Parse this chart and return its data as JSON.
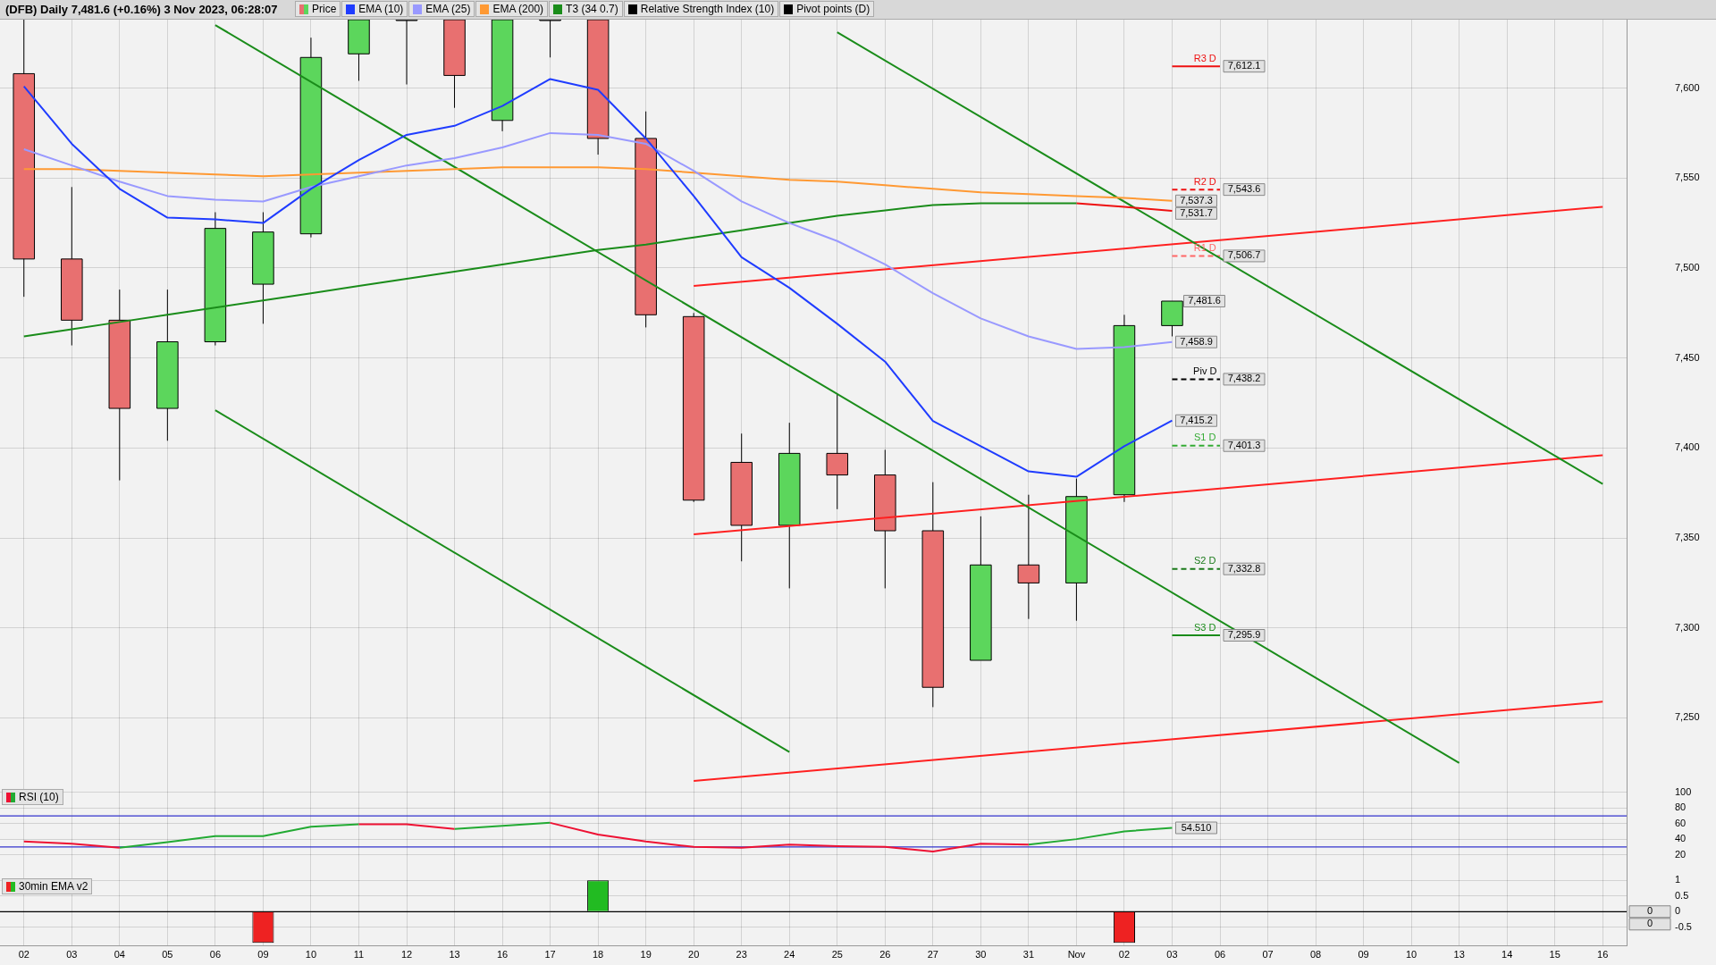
{
  "chart_data": [
    {
      "type": "candlestick",
      "title": "(DFB) Daily 7,481.6 (+0.16%) 3 Nov 2023, 06:28:07",
      "legend": "top left",
      "grid": true,
      "tick_labels": "y",
      "categories": [
        null,
        null,
        null,
        null,
        null,
        null,
        null,
        null,
        null,
        null,
        null,
        null,
        null,
        null,
        null,
        null,
        null,
        null,
        null,
        null,
        null,
        null,
        null,
        null,
        null,
        null,
        null,
        null,
        null,
        null,
        null,
        null,
        null,
        null
      ],
      "ylim": [
        7212,
        7638
      ],
      "yticks": [
        {
          "value": 7250,
          "label": "7,250"
        },
        {
          "value": 7300,
          "label": "7,300"
        },
        {
          "value": 7350,
          "label": "7,350"
        },
        {
          "value": 7400,
          "label": "7,400"
        },
        {
          "value": 7450,
          "label": "7,450"
        },
        {
          "value": 7500,
          "label": "7,500"
        },
        {
          "value": 7550,
          "label": "7,550"
        },
        {
          "value": 7600,
          "label": "7,600"
        }
      ],
      "series": [
        {
          "name": "Price",
          "ohlc": [
            [
              7608,
              7638,
              7484,
              7505
            ],
            [
              7505,
              7545,
              7457,
              7471
            ],
            [
              7471,
              7488,
              7382,
              7422
            ],
            [
              7422,
              7488,
              7404,
              7459
            ],
            [
              7459,
              7531,
              7457,
              7522
            ],
            [
              7491,
              7531,
              7469,
              7520
            ],
            [
              7519,
              7628,
              7517,
              7617
            ],
            [
              7619,
              7638,
              7604,
              7638
            ],
            [
              7638,
              7638,
              7602,
              7638
            ],
            [
              7638,
              7638,
              7589,
              7607
            ],
            [
              7582,
              7638,
              7576,
              7638
            ],
            [
              7638,
              7638,
              7617,
              7638
            ],
            [
              7638,
              7638,
              7563,
              7572
            ],
            [
              7572,
              7587,
              7467,
              7474
            ],
            [
              7473,
              7475,
              7370,
              7371
            ],
            [
              7392,
              7408,
              7337,
              7357
            ],
            [
              7357,
              7414,
              7322,
              7397
            ],
            [
              7397,
              7430,
              7366,
              7385
            ],
            [
              7385,
              7399,
              7322,
              7354
            ],
            [
              7354,
              7381,
              7256,
              7267
            ],
            [
              7282,
              7362,
              7282,
              7335
            ],
            [
              7335,
              7374,
              7305,
              7325
            ],
            [
              7325,
              7383,
              7304,
              7373
            ],
            [
              7374,
              7474,
              7370,
              7468
            ],
            [
              7468,
              7481.6,
              7462,
              7481.6
            ],
            null,
            null,
            null,
            null,
            null,
            null,
            null,
            null,
            null
          ],
          "colors": [
            "#e87070",
            "#e87070",
            "#e87070",
            "#5cd65c",
            "#5cd65c",
            "#5cd65c",
            "#5cd65c",
            "#5cd65c",
            null,
            "#e87070",
            "#5cd65c",
            null,
            "#e87070",
            "#e87070",
            "#e87070",
            "#e87070",
            "#5cd65c",
            "#e87070",
            "#e87070",
            "#e87070",
            "#5cd65c",
            "#e87070",
            "#5cd65c",
            "#5cd65c",
            "#5cd65c",
            null,
            null,
            null,
            null,
            null,
            null,
            null,
            null,
            null
          ],
          "value_labels": [
            null,
            null,
            null,
            null,
            null,
            null,
            null,
            null,
            null,
            null,
            null,
            null,
            null,
            null,
            null,
            null,
            null,
            null,
            null,
            null,
            null,
            null,
            null,
            null,
            "7,481.6",
            null,
            null,
            null,
            null,
            null,
            null,
            null,
            null,
            null
          ]
        },
        {
          "name": "EMA (10)",
          "type": "line",
          "color": "#1f3cff",
          "values": [
            7601,
            7569,
            7544,
            7528,
            7527,
            7525,
            7544,
            7560,
            7574,
            7579,
            7590,
            7605,
            7599,
            7572,
            7540,
            7506,
            7489,
            7469,
            7448,
            7415,
            7401,
            7387,
            7384,
            7401,
            7415.2,
            null,
            null,
            null,
            null,
            null,
            null,
            null,
            null,
            null
          ],
          "value_labels": [
            null,
            null,
            null,
            null,
            null,
            null,
            null,
            null,
            null,
            null,
            null,
            null,
            null,
            null,
            null,
            null,
            null,
            null,
            null,
            null,
            null,
            null,
            null,
            null,
            "7,415.2",
            null,
            null,
            null,
            null,
            null,
            null,
            null,
            null,
            null
          ]
        },
        {
          "name": "EMA (25)",
          "type": "line",
          "color": "#9999ff",
          "values": [
            7566,
            7557,
            7548,
            7540,
            7538,
            7537,
            7545,
            7551,
            7557,
            7561,
            7567,
            7575,
            7574,
            7569,
            7554,
            7537,
            7525,
            7515,
            7502,
            7486,
            7472,
            7462,
            7455,
            7456,
            7458.9,
            null,
            null,
            null,
            null,
            null,
            null,
            null,
            null,
            null
          ],
          "value_labels": [
            null,
            null,
            null,
            null,
            null,
            null,
            null,
            null,
            null,
            null,
            null,
            null,
            null,
            null,
            null,
            null,
            null,
            null,
            null,
            null,
            null,
            null,
            null,
            null,
            "7,458.9",
            null,
            null,
            null,
            null,
            null,
            null,
            null,
            null,
            null
          ]
        },
        {
          "name": "EMA (200)",
          "type": "line",
          "color": "#ff9933",
          "values": [
            7555,
            7555,
            7554,
            7553,
            7552,
            7551,
            7552,
            7553,
            7554,
            7555,
            7556,
            7556,
            7556,
            7555,
            7553,
            7551,
            7549,
            7548,
            7546,
            7544,
            7542,
            7541,
            7540,
            7539,
            7537.3,
            null,
            null,
            null,
            null,
            null,
            null,
            null,
            null,
            null
          ],
          "value_labels": [
            null,
            null,
            null,
            null,
            null,
            null,
            null,
            null,
            null,
            null,
            null,
            null,
            null,
            null,
            null,
            null,
            null,
            null,
            null,
            null,
            null,
            null,
            null,
            null,
            "7,537.3",
            null,
            null,
            null,
            null,
            null,
            null,
            null,
            null,
            null
          ]
        },
        {
          "name": "T3 (34 0.7)",
          "type": "line",
          "color": "#1a8c1a",
          "values": [
            7462,
            7466,
            7470,
            7474,
            7478,
            7482,
            7486,
            7490,
            7494,
            7498,
            7502,
            7506,
            7510,
            7513,
            7517,
            7521,
            7525,
            7529,
            7532,
            7535,
            7536,
            7536,
            7536,
            null,
            null,
            null,
            null,
            null,
            null,
            null,
            null,
            null,
            null,
            null
          ]
        },
        {
          "type": "line",
          "color": "#ee1111",
          "values": [
            null,
            null,
            null,
            null,
            null,
            null,
            null,
            null,
            null,
            null,
            null,
            null,
            null,
            null,
            null,
            null,
            null,
            null,
            null,
            null,
            null,
            null,
            7536,
            7534,
            7531.7,
            null,
            null,
            null,
            null,
            null,
            null,
            null,
            null,
            null
          ],
          "value_labels": [
            null,
            null,
            null,
            null,
            null,
            null,
            null,
            null,
            null,
            null,
            null,
            null,
            null,
            null,
            null,
            null,
            null,
            null,
            null,
            null,
            null,
            null,
            null,
            null,
            "7,531.7",
            null,
            null,
            null,
            null,
            null,
            null,
            null,
            null,
            null
          ]
        },
        {
          "type": "line",
          "color": "#1a8c1a",
          "values": [
            null,
            null,
            null,
            null,
            null,
            null,
            null,
            null,
            null,
            null,
            null,
            null,
            null,
            null,
            null,
            null,
            null,
            7631,
            null,
            null,
            null,
            null,
            null,
            null,
            null,
            null,
            null,
            null,
            null,
            null,
            null,
            null,
            null,
            7380
          ]
        },
        {
          "type": "line",
          "color": "#1a8c1a",
          "values": [
            null,
            null,
            null,
            null,
            7635,
            null,
            null,
            null,
            null,
            null,
            null,
            null,
            null,
            null,
            null,
            null,
            null,
            null,
            null,
            null,
            null,
            null,
            null,
            null,
            null,
            null,
            null,
            null,
            null,
            null,
            7225,
            null,
            null,
            null
          ]
        },
        {
          "type": "line",
          "color": "#1a8c1a",
          "values": [
            null,
            null,
            null,
            null,
            7421,
            null,
            null,
            null,
            null,
            null,
            null,
            null,
            null,
            null,
            null,
            null,
            7231,
            null,
            null,
            null,
            null,
            null,
            null,
            null,
            null,
            null,
            null,
            null,
            null,
            null,
            null,
            null,
            null,
            null
          ]
        },
        {
          "type": "line",
          "color": "#ff2020",
          "values": [
            null,
            null,
            null,
            null,
            null,
            null,
            null,
            null,
            null,
            null,
            null,
            null,
            null,
            null,
            7490,
            null,
            null,
            null,
            null,
            null,
            null,
            null,
            null,
            null,
            null,
            null,
            null,
            null,
            null,
            null,
            null,
            null,
            null,
            7534
          ]
        },
        {
          "type": "line",
          "color": "#ff2020",
          "values": [
            null,
            null,
            null,
            null,
            null,
            null,
            null,
            null,
            null,
            null,
            null,
            null,
            null,
            null,
            7352,
            null,
            null,
            null,
            null,
            null,
            null,
            null,
            null,
            null,
            null,
            null,
            null,
            null,
            null,
            null,
            null,
            null,
            null,
            7396
          ]
        },
        {
          "type": "line",
          "color": "#ff2020",
          "values": [
            null,
            null,
            null,
            null,
            null,
            null,
            null,
            null,
            null,
            null,
            null,
            null,
            null,
            null,
            7215,
            null,
            null,
            null,
            null,
            null,
            null,
            null,
            null,
            null,
            null,
            null,
            null,
            null,
            null,
            null,
            null,
            null,
            null,
            7259
          ]
        },
        {
          "name": "R3 D",
          "type": "line",
          "color": "#ee1111",
          "line_style": "solid",
          "values": [
            null,
            null,
            null,
            null,
            null,
            null,
            null,
            null,
            null,
            null,
            null,
            null,
            null,
            null,
            null,
            null,
            null,
            null,
            null,
            null,
            null,
            null,
            null,
            null,
            7612.1,
            7612.1,
            null,
            null,
            null,
            null,
            null,
            null,
            null,
            null
          ],
          "value_labels": [
            null,
            null,
            null,
            null,
            null,
            null,
            null,
            null,
            null,
            null,
            null,
            null,
            null,
            null,
            null,
            null,
            null,
            null,
            null,
            null,
            null,
            null,
            null,
            null,
            null,
            "7,612.1",
            null,
            null,
            null,
            null,
            null,
            null,
            null,
            null
          ]
        },
        {
          "name": "R2 D",
          "type": "line",
          "color": "#ee1111",
          "line_style": "dashed",
          "values": [
            null,
            null,
            null,
            null,
            null,
            null,
            null,
            null,
            null,
            null,
            null,
            null,
            null,
            null,
            null,
            null,
            null,
            null,
            null,
            null,
            null,
            null,
            null,
            null,
            7543.6,
            7543.6,
            null,
            null,
            null,
            null,
            null,
            null,
            null,
            null
          ],
          "value_labels": [
            null,
            null,
            null,
            null,
            null,
            null,
            null,
            null,
            null,
            null,
            null,
            null,
            null,
            null,
            null,
            null,
            null,
            null,
            null,
            null,
            null,
            null,
            null,
            null,
            null,
            "7,543.6",
            null,
            null,
            null,
            null,
            null,
            null,
            null,
            null
          ]
        },
        {
          "name": "R1 D",
          "type": "line",
          "color": "#ff6666",
          "line_style": "dashed",
          "values": [
            null,
            null,
            null,
            null,
            null,
            null,
            null,
            null,
            null,
            null,
            null,
            null,
            null,
            null,
            null,
            null,
            null,
            null,
            null,
            null,
            null,
            null,
            null,
            null,
            7506.7,
            7506.7,
            null,
            null,
            null,
            null,
            null,
            null,
            null,
            null
          ],
          "value_labels": [
            null,
            null,
            null,
            null,
            null,
            null,
            null,
            null,
            null,
            null,
            null,
            null,
            null,
            null,
            null,
            null,
            null,
            null,
            null,
            null,
            null,
            null,
            null,
            null,
            null,
            "7,506.7",
            null,
            null,
            null,
            null,
            null,
            null,
            null,
            null
          ]
        },
        {
          "name": "Piv D",
          "type": "line",
          "color": "#000000",
          "line_style": "dashed",
          "values": [
            null,
            null,
            null,
            null,
            null,
            null,
            null,
            null,
            null,
            null,
            null,
            null,
            null,
            null,
            null,
            null,
            null,
            null,
            null,
            null,
            null,
            null,
            null,
            null,
            7438.2,
            7438.2,
            null,
            null,
            null,
            null,
            null,
            null,
            null,
            null
          ],
          "value_labels": [
            null,
            null,
            null,
            null,
            null,
            null,
            null,
            null,
            null,
            null,
            null,
            null,
            null,
            null,
            null,
            null,
            null,
            null,
            null,
            null,
            null,
            null,
            null,
            null,
            null,
            "7,438.2",
            null,
            null,
            null,
            null,
            null,
            null,
            null,
            null
          ]
        },
        {
          "name": "S1 D",
          "type": "line",
          "color": "#33aa33",
          "line_style": "dashed",
          "values": [
            null,
            null,
            null,
            null,
            null,
            null,
            null,
            null,
            null,
            null,
            null,
            null,
            null,
            null,
            null,
            null,
            null,
            null,
            null,
            null,
            null,
            null,
            null,
            null,
            7401.3,
            7401.3,
            null,
            null,
            null,
            null,
            null,
            null,
            null,
            null
          ],
          "value_labels": [
            null,
            null,
            null,
            null,
            null,
            null,
            null,
            null,
            null,
            null,
            null,
            null,
            null,
            null,
            null,
            null,
            null,
            null,
            null,
            null,
            null,
            null,
            null,
            null,
            null,
            "7,401.3",
            null,
            null,
            null,
            null,
            null,
            null,
            null,
            null
          ]
        },
        {
          "name": "S2 D",
          "type": "line",
          "color": "#1a7a1a",
          "line_style": "dashed",
          "values": [
            null,
            null,
            null,
            null,
            null,
            null,
            null,
            null,
            null,
            null,
            null,
            null,
            null,
            null,
            null,
            null,
            null,
            null,
            null,
            null,
            null,
            null,
            null,
            null,
            7332.8,
            7332.8,
            null,
            null,
            null,
            null,
            null,
            null,
            null,
            null
          ],
          "value_labels": [
            null,
            null,
            null,
            null,
            null,
            null,
            null,
            null,
            null,
            null,
            null,
            null,
            null,
            null,
            null,
            null,
            null,
            null,
            null,
            null,
            null,
            null,
            null,
            null,
            null,
            "7,332.8",
            null,
            null,
            null,
            null,
            null,
            null,
            null,
            null
          ]
        },
        {
          "name": "S3 D",
          "type": "line",
          "color": "#1a8c1a",
          "line_style": "solid",
          "values": [
            null,
            null,
            null,
            null,
            null,
            null,
            null,
            null,
            null,
            null,
            null,
            null,
            null,
            null,
            null,
            null,
            null,
            null,
            null,
            null,
            null,
            null,
            null,
            null,
            7295.9,
            7295.9,
            null,
            null,
            null,
            null,
            null,
            null,
            null,
            null
          ],
          "value_labels": [
            null,
            null,
            null,
            null,
            null,
            null,
            null,
            null,
            null,
            null,
            null,
            null,
            null,
            null,
            null,
            null,
            null,
            null,
            null,
            null,
            null,
            null,
            null,
            null,
            null,
            "7,295.9",
            null,
            null,
            null,
            null,
            null,
            null,
            null,
            null
          ]
        }
      ],
      "annotations": [
        "Relative Strength Index (10)",
        "Pivot points (D)"
      ]
    },
    {
      "type": "line",
      "title": "RSI (10)",
      "grid": true,
      "tick_labels": "y",
      "categories": [
        null,
        null,
        null,
        null,
        null,
        null,
        null,
        null,
        null,
        null,
        null,
        null,
        null,
        null,
        null,
        null,
        null,
        null,
        null,
        null,
        null,
        null,
        null,
        null,
        null,
        null,
        null,
        null,
        null,
        null,
        null,
        null,
        null,
        null
      ],
      "ylim": [
        -7,
        108
      ],
      "yticks": [
        20,
        40,
        60,
        80,
        100
      ],
      "series": [
        {
          "color": "#ee1133",
          "values": [
            37,
            34,
            29,
            null,
            null,
            null,
            null,
            59,
            59,
            53,
            null,
            61,
            46,
            37,
            30,
            29,
            33,
            31,
            30,
            24,
            34,
            33,
            null,
            null,
            null,
            null,
            null,
            null,
            null,
            null,
            null,
            null,
            null,
            null
          ]
        },
        {
          "color": "#22aa33",
          "values": [
            null,
            null,
            29,
            36,
            44,
            44,
            56,
            59,
            null,
            53,
            57,
            61,
            null,
            null,
            null,
            null,
            null,
            null,
            null,
            null,
            null,
            33,
            40,
            50,
            54.51,
            null,
            null,
            null,
            null,
            null,
            null,
            null,
            null,
            null
          ],
          "value_labels": [
            null,
            null,
            null,
            null,
            null,
            null,
            null,
            null,
            null,
            null,
            null,
            null,
            null,
            null,
            null,
            null,
            null,
            null,
            null,
            null,
            null,
            null,
            null,
            null,
            "54.510",
            null,
            null,
            null,
            null,
            null,
            null,
            null,
            null,
            null
          ]
        }
      ],
      "ref_lines": [
        {
          "axis": "y",
          "value": 70,
          "color": "#3333cc"
        },
        {
          "axis": "y",
          "value": 30,
          "color": "#3333cc"
        }
      ]
    },
    {
      "type": "bar",
      "title": "30min EMA v2",
      "grid": true,
      "categories": [
        "02",
        "03",
        "04",
        "05",
        "06",
        "09",
        "10",
        "11",
        "12",
        "13",
        "16",
        "17",
        "18",
        "19",
        "20",
        "23",
        "24",
        "25",
        "26",
        "27",
        "30",
        "31",
        "Nov",
        "02",
        "03",
        "06",
        "07",
        "08",
        "09",
        "10",
        "13",
        "14",
        "15",
        "16"
      ],
      "ylim": [
        -1.1,
        1.15
      ],
      "yticks": [
        1,
        0.5,
        0,
        -0.5
      ],
      "values": [
        0,
        0,
        0,
        0,
        0,
        -1,
        0,
        0,
        0,
        0,
        0,
        0,
        1,
        0,
        0,
        0,
        0,
        0,
        0,
        0,
        0,
        0,
        0,
        -1,
        0,
        null,
        null,
        null,
        null,
        null,
        null,
        null,
        null,
        null
      ],
      "colors": [
        "#888888",
        "#888888",
        "#888888",
        "#888888",
        "#888888",
        "#ee2222",
        "#888888",
        "#888888",
        "#888888",
        "#888888",
        "#888888",
        "#888888",
        "#22bb22",
        "#888888",
        "#888888",
        "#888888",
        "#888888",
        "#888888",
        "#888888",
        "#888888",
        "#888888",
        "#888888",
        "#888888",
        "#ee2222",
        "#888888",
        null,
        null,
        null,
        null,
        null,
        null,
        null,
        null,
        null
      ],
      "ref_lines": [
        {
          "axis": "y",
          "value": 0,
          "color": "#000000",
          "label": "0"
        }
      ],
      "annotations": [
        "0"
      ]
    }
  ]
}
